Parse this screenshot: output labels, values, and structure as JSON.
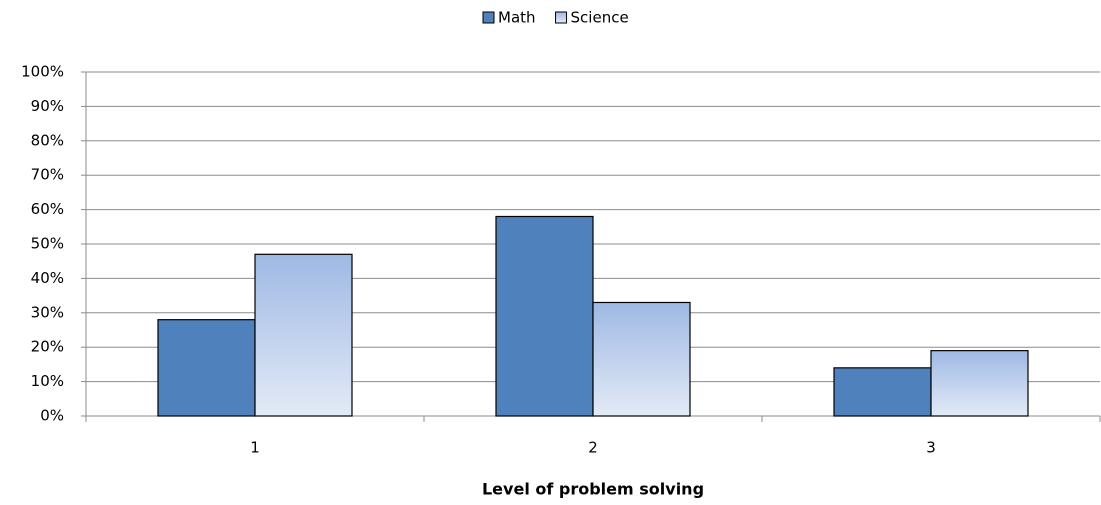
{
  "chart_data": {
    "type": "bar",
    "x_label": "Level of problem solving",
    "categories": [
      "1",
      "2",
      "3"
    ],
    "series": [
      {
        "name": "Math",
        "color": "#4f81bd",
        "values": [
          28,
          58,
          14
        ]
      },
      {
        "name": "Science",
        "color": "#9fb9e4",
        "values": [
          47,
          33,
          19
        ]
      }
    ],
    "ylim": [
      0,
      100
    ],
    "yticks": [
      {
        "value": 0,
        "label": "0%"
      },
      {
        "value": 10,
        "label": "10%"
      },
      {
        "value": 20,
        "label": "20%"
      },
      {
        "value": 30,
        "label": "30%"
      },
      {
        "value": 40,
        "label": "40%"
      },
      {
        "value": 50,
        "label": "50%"
      },
      {
        "value": 60,
        "label": "60%"
      },
      {
        "value": 70,
        "label": "70%"
      },
      {
        "value": 80,
        "label": "80%"
      },
      {
        "value": 90,
        "label": "90%"
      },
      {
        "value": 100,
        "label": "100%"
      }
    ],
    "grid": true,
    "legend": "top"
  }
}
